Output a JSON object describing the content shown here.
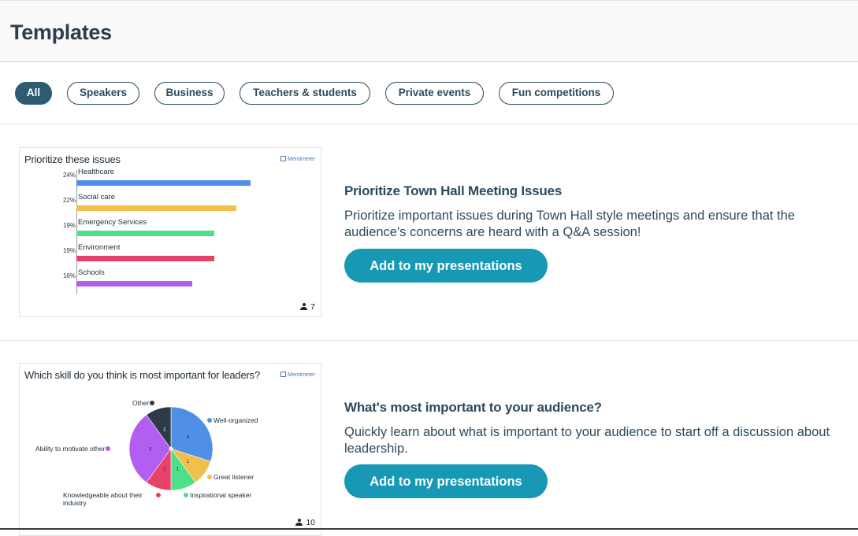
{
  "header": {
    "title": "Templates"
  },
  "filters": [
    {
      "label": "All",
      "active": true
    },
    {
      "label": "Speakers",
      "active": false
    },
    {
      "label": "Business",
      "active": false
    },
    {
      "label": "Teachers & students",
      "active": false
    },
    {
      "label": "Private events",
      "active": false
    },
    {
      "label": "Fun competitions",
      "active": false
    }
  ],
  "colors": {
    "accent": "#1798b5",
    "chip_active": "#2d5b72",
    "text": "#2d4a5c",
    "blue": "#4f8fe6",
    "yellow": "#f0c04a",
    "green": "#4de08a",
    "red": "#e8416a",
    "purple": "#b25ef0",
    "dark": "#2d3a47"
  },
  "templates": [
    {
      "title": "Prioritize Town Hall Meeting Issues",
      "description": "Prioritize important issues during Town Hall style meetings and ensure that the audience's concerns are heard with a Q&A session!",
      "button_label": "Add to my presentations",
      "preview": {
        "question": "Prioritize these issues",
        "brand": "Mentimeter",
        "votes": "7",
        "icon": "user-icon",
        "chart_data": {
          "type": "bar",
          "orientation": "horizontal",
          "categories": [
            "Healthcare",
            "Social care",
            "Emergency Services",
            "Environment",
            "Schools"
          ],
          "values": [
            24,
            22,
            19,
            19,
            16
          ],
          "value_labels": [
            "24%",
            "22%",
            "19%",
            "19%",
            "16%"
          ],
          "colors": [
            "#4f8fe6",
            "#f0c04a",
            "#4de08a",
            "#e8416a",
            "#b25ef0"
          ],
          "title": "Prioritize these issues",
          "xlim": [
            0,
            28
          ]
        }
      }
    },
    {
      "title": "What's most important to your audience?",
      "description": "Quickly learn about what is important to your audience to start off a discussion about leadership.",
      "button_label": "Add to my presentations",
      "preview": {
        "question": "Which skill do you think is most important for leaders?",
        "brand": "Mentimeter",
        "votes": "10",
        "icon": "user-icon",
        "chart_data": {
          "type": "pie",
          "categories": [
            "Well-organized",
            "Great listener",
            "Inspirational speaker",
            "Knowledgeable about their industry",
            "Ability to motivate other",
            "Other"
          ],
          "values": [
            3,
            1,
            1,
            1,
            3,
            1
          ],
          "colors": [
            "#4f8fe6",
            "#f0c04a",
            "#4de08a",
            "#e8416a",
            "#b25ef0",
            "#2d3a47"
          ],
          "title": "Which skill do you think is most important for leaders?"
        }
      }
    }
  ]
}
